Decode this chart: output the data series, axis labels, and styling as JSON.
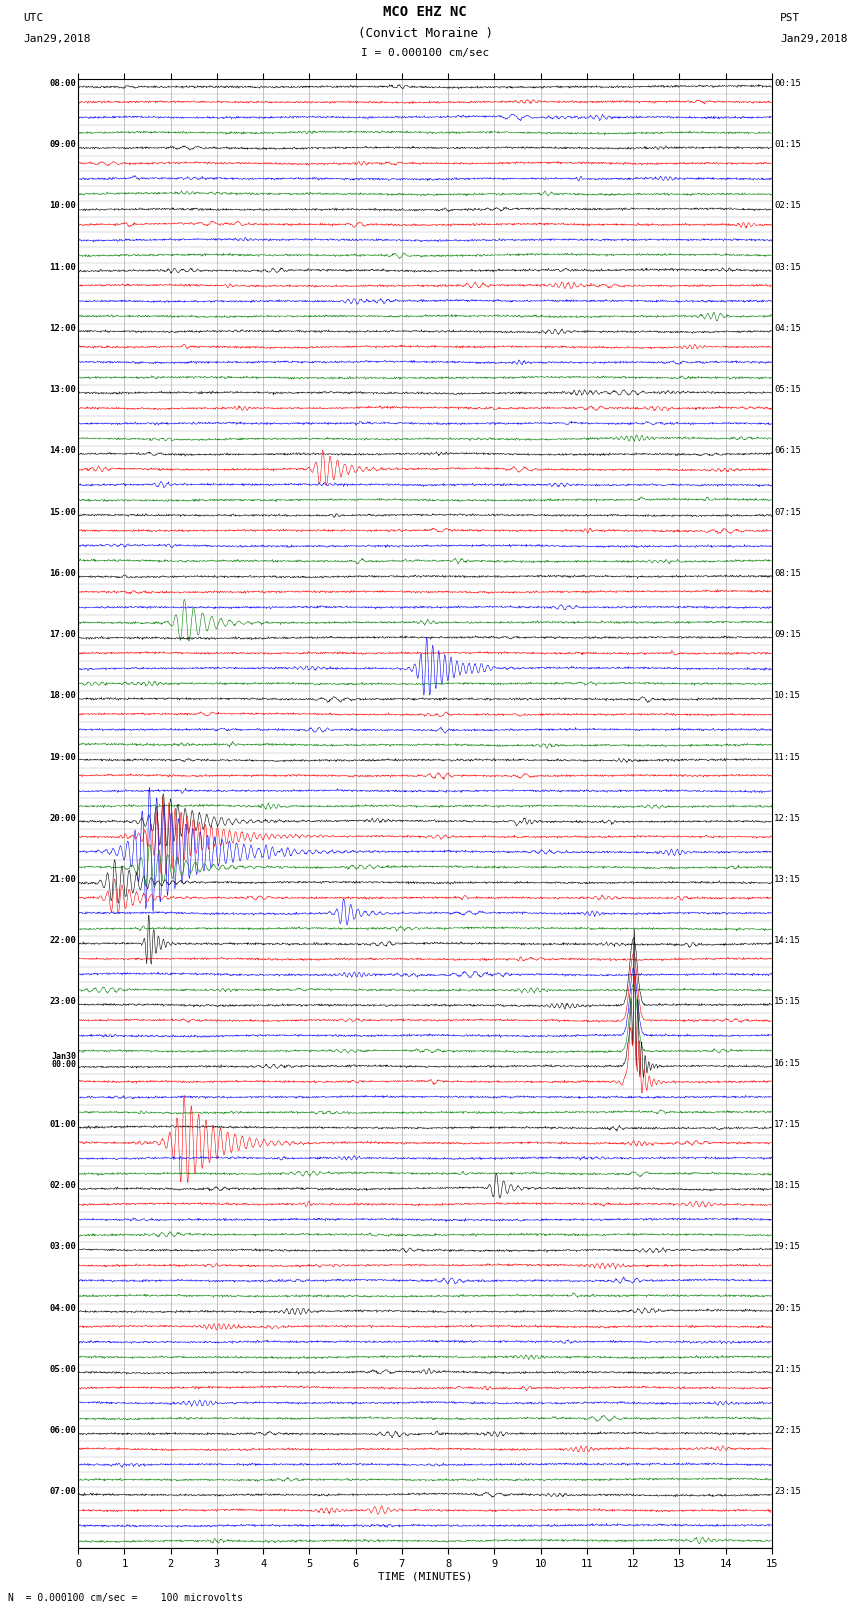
{
  "title_line1": "MCO EHZ NC",
  "title_line2": "(Convict Moraine )",
  "scale_text": "I = 0.000100 cm/sec",
  "bottom_text": "N  = 0.000100 cm/sec =    100 microvolts",
  "xlabel": "TIME (MINUTES)",
  "left_date_line1": "UTC",
  "left_date_line2": "Jan29,2018",
  "right_date_line1": "PST",
  "right_date_line2": "Jan29,2018",
  "utc_row_labels": {
    "0": "08:00",
    "4": "09:00",
    "8": "10:00",
    "12": "11:00",
    "16": "12:00",
    "20": "13:00",
    "24": "14:00",
    "28": "15:00",
    "32": "16:00",
    "36": "17:00",
    "40": "18:00",
    "44": "19:00",
    "48": "20:00",
    "52": "21:00",
    "56": "22:00",
    "60": "23:00",
    "64": "Jan30\n00:00",
    "68": "01:00",
    "72": "02:00",
    "76": "03:00",
    "80": "04:00",
    "84": "05:00",
    "88": "06:00",
    "92": "07:00"
  },
  "pst_row_labels": {
    "0": "00:15",
    "4": "01:15",
    "8": "02:15",
    "12": "03:15",
    "16": "04:15",
    "20": "05:15",
    "24": "06:15",
    "28": "07:15",
    "32": "08:15",
    "36": "09:15",
    "40": "10:15",
    "44": "11:15",
    "48": "12:15",
    "52": "13:15",
    "56": "14:15",
    "60": "15:15",
    "64": "16:15",
    "68": "17:15",
    "72": "18:15",
    "76": "19:15",
    "80": "20:15",
    "84": "21:15",
    "88": "22:15",
    "92": "23:15"
  },
  "trace_colors": [
    "black",
    "red",
    "blue",
    "green"
  ],
  "bg_color": "white",
  "grid_color": "#aaaaaa",
  "n_rows": 96,
  "n_minutes": 15,
  "samples_per_row": 1500,
  "amp_scale": 0.55
}
